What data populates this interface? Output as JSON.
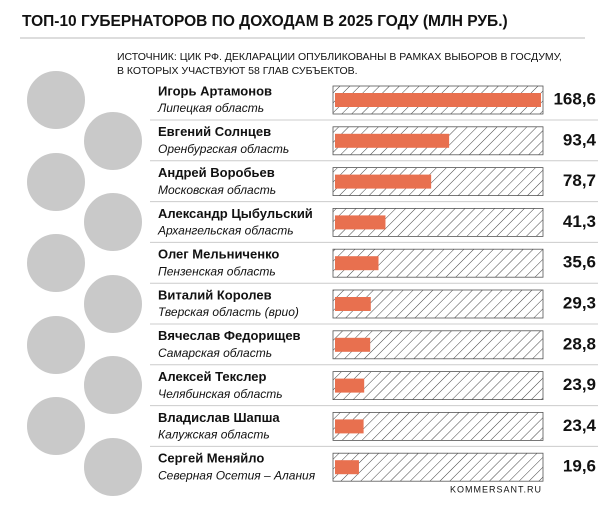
{
  "chart_data": {
    "type": "bar",
    "title": "ТОП-10 ГУБЕРНАТОРОВ ПО ДОХОДАМ В 2025 ГОДУ (МЛН РУБ.)",
    "source": [
      "ИСТОЧНИК: ЦИК РФ. ДЕКЛАРАЦИИ ОПУБЛИКОВАНЫ В РАМКАХ ВЫБОРОВ В ГОСДУМУ,",
      "В КОТОРЫХ УЧАСТВУЮТ 58 ГЛАВ СУБЪЕКТОВ."
    ],
    "categories": [
      "Игорь Артамонов",
      "Евгений Солнцев",
      "Андрей Воробьев",
      "Александр Цыбульский",
      "Олег Мельниченко",
      "Виталий Королев",
      "Вячеслав Федорищев",
      "Алексей Текслер",
      "Владислав Шапша",
      "Сергей Меняйло"
    ],
    "regions": [
      "Липецкая область",
      "Оренбургская область",
      "Московская область",
      "Архангельская область",
      "Пензенская область",
      "Тверская область (врио)",
      "Самарская область",
      "Челябинская область",
      "Калужская область",
      "Северная Осетия – Алания"
    ],
    "values": [
      168.6,
      93.4,
      78.7,
      41.3,
      35.6,
      29.3,
      28.8,
      23.9,
      23.4,
      19.6
    ],
    "value_labels": [
      "168,6",
      "93,4",
      "78,7",
      "41,3",
      "35,6",
      "29,3",
      "28,8",
      "23,9",
      "23,4",
      "19,6"
    ],
    "color": "#e8704f",
    "credit": "KOMMERSANT.RU"
  }
}
